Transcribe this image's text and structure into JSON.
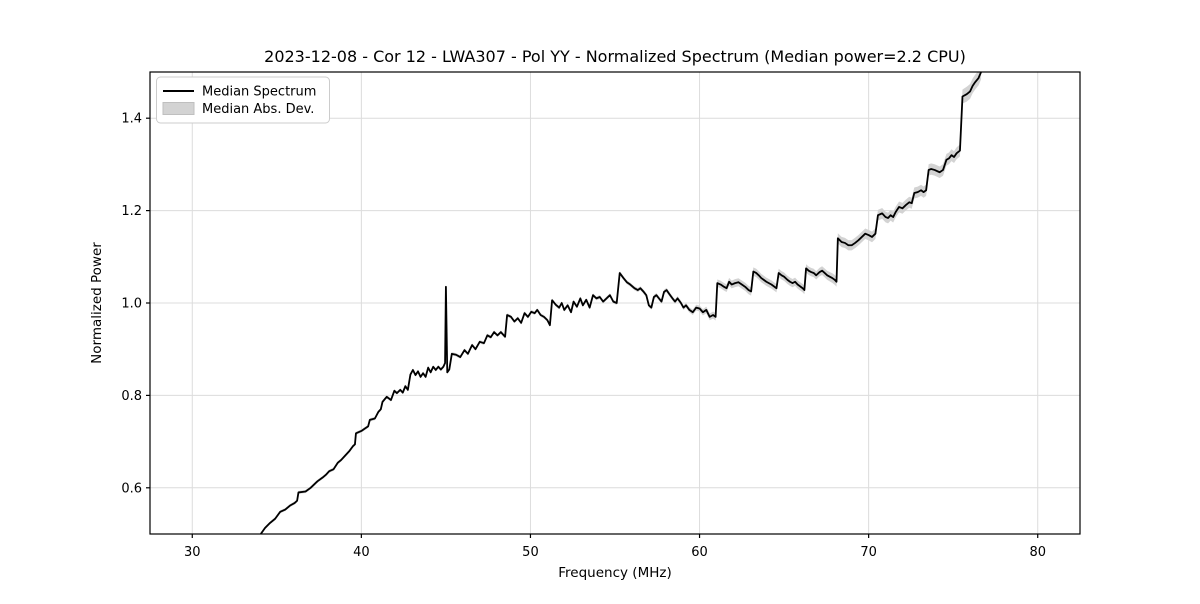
{
  "chart_data": {
    "type": "line",
    "title": "2023-12-08 - Cor 12 - LWA307 - Pol YY - Normalized Spectrum (Median power=2.2 CPU)",
    "xlabel": "Frequency (MHz)",
    "ylabel": "Normalized Power",
    "xlim": [
      27.5,
      82.5
    ],
    "ylim": [
      0.5,
      1.5
    ],
    "xticks": [
      "30",
      "40",
      "50",
      "60",
      "70",
      "80"
    ],
    "yticks": [
      "0.6",
      "0.8",
      "1.0",
      "1.2",
      "1.4"
    ],
    "grid": true,
    "legend": {
      "position": "upper left",
      "entries": [
        {
          "label": "Median Spectrum",
          "swatch": "line"
        },
        {
          "label": "Median Abs. Dev.",
          "swatch": "patch"
        }
      ]
    },
    "colors": {
      "line": "#000000",
      "band": "#d3d3d3",
      "band_edge": "#bfbfbf",
      "grid": "#dcdcdc",
      "frame": "#000000",
      "legend_border": "#cccccc"
    },
    "series": [
      {
        "name": "Median Spectrum",
        "points": [
          [
            34.05,
            0.5
          ],
          [
            34.3,
            0.513
          ],
          [
            34.6,
            0.524
          ],
          [
            34.9,
            0.533
          ],
          [
            35.2,
            0.548
          ],
          [
            35.5,
            0.553
          ],
          [
            35.8,
            0.562
          ],
          [
            36.05,
            0.567
          ],
          [
            36.2,
            0.572
          ],
          [
            36.28,
            0.59
          ],
          [
            36.7,
            0.592
          ],
          [
            37.0,
            0.6
          ],
          [
            37.4,
            0.614
          ],
          [
            37.7,
            0.622
          ],
          [
            37.9,
            0.628
          ],
          [
            38.1,
            0.636
          ],
          [
            38.35,
            0.64
          ],
          [
            38.6,
            0.654
          ],
          [
            38.8,
            0.66
          ],
          [
            39.0,
            0.668
          ],
          [
            39.3,
            0.68
          ],
          [
            39.5,
            0.69
          ],
          [
            39.62,
            0.694
          ],
          [
            39.68,
            0.718
          ],
          [
            40.0,
            0.723
          ],
          [
            40.2,
            0.728
          ],
          [
            40.4,
            0.733
          ],
          [
            40.5,
            0.747
          ],
          [
            40.8,
            0.75
          ],
          [
            41.0,
            0.764
          ],
          [
            41.15,
            0.77
          ],
          [
            41.25,
            0.786
          ],
          [
            41.5,
            0.797
          ],
          [
            41.75,
            0.79
          ],
          [
            41.95,
            0.81
          ],
          [
            42.1,
            0.805
          ],
          [
            42.3,
            0.812
          ],
          [
            42.45,
            0.806
          ],
          [
            42.6,
            0.82
          ],
          [
            42.75,
            0.812
          ],
          [
            42.9,
            0.845
          ],
          [
            43.05,
            0.855
          ],
          [
            43.2,
            0.844
          ],
          [
            43.35,
            0.852
          ],
          [
            43.5,
            0.84
          ],
          [
            43.65,
            0.848
          ],
          [
            43.8,
            0.84
          ],
          [
            43.95,
            0.86
          ],
          [
            44.1,
            0.85
          ],
          [
            44.25,
            0.862
          ],
          [
            44.4,
            0.855
          ],
          [
            44.55,
            0.862
          ],
          [
            44.7,
            0.856
          ],
          [
            44.85,
            0.862
          ],
          [
            44.95,
            0.87
          ],
          [
            45.0,
            1.035
          ],
          [
            45.08,
            0.85
          ],
          [
            45.2,
            0.856
          ],
          [
            45.35,
            0.89
          ],
          [
            45.6,
            0.888
          ],
          [
            45.85,
            0.883
          ],
          [
            46.1,
            0.898
          ],
          [
            46.3,
            0.89
          ],
          [
            46.55,
            0.909
          ],
          [
            46.75,
            0.9
          ],
          [
            47.0,
            0.916
          ],
          [
            47.25,
            0.913
          ],
          [
            47.45,
            0.93
          ],
          [
            47.65,
            0.926
          ],
          [
            47.85,
            0.937
          ],
          [
            48.05,
            0.93
          ],
          [
            48.25,
            0.937
          ],
          [
            48.5,
            0.927
          ],
          [
            48.62,
            0.974
          ],
          [
            48.85,
            0.97
          ],
          [
            49.05,
            0.96
          ],
          [
            49.25,
            0.967
          ],
          [
            49.45,
            0.957
          ],
          [
            49.65,
            0.978
          ],
          [
            49.85,
            0.97
          ],
          [
            50.05,
            0.981
          ],
          [
            50.25,
            0.978
          ],
          [
            50.4,
            0.985
          ],
          [
            50.6,
            0.974
          ],
          [
            50.8,
            0.97
          ],
          [
            51.0,
            0.963
          ],
          [
            51.15,
            0.952
          ],
          [
            51.28,
            1.006
          ],
          [
            51.5,
            0.996
          ],
          [
            51.7,
            0.99
          ],
          [
            51.85,
            1.0
          ],
          [
            52.0,
            0.985
          ],
          [
            52.2,
            0.995
          ],
          [
            52.4,
            0.98
          ],
          [
            52.55,
            1.003
          ],
          [
            52.75,
            0.992
          ],
          [
            52.95,
            1.01
          ],
          [
            53.1,
            0.995
          ],
          [
            53.3,
            1.007
          ],
          [
            53.5,
            0.99
          ],
          [
            53.7,
            1.017
          ],
          [
            53.9,
            1.01
          ],
          [
            54.1,
            1.013
          ],
          [
            54.3,
            1.003
          ],
          [
            54.5,
            1.01
          ],
          [
            54.7,
            1.017
          ],
          [
            54.9,
            1.003
          ],
          [
            55.1,
            1.0
          ],
          [
            55.28,
            1.065
          ],
          [
            55.5,
            1.054
          ],
          [
            55.7,
            1.045
          ],
          [
            55.9,
            1.04
          ],
          [
            56.15,
            1.032
          ],
          [
            56.35,
            1.028
          ],
          [
            56.5,
            1.032
          ],
          [
            56.7,
            1.024
          ],
          [
            56.85,
            1.017
          ],
          [
            57.0,
            0.995
          ],
          [
            57.15,
            0.99
          ],
          [
            57.3,
            1.013
          ],
          [
            57.45,
            1.017
          ],
          [
            57.6,
            1.01
          ],
          [
            57.75,
            1.003
          ],
          [
            57.9,
            1.024
          ],
          [
            58.05,
            1.028
          ],
          [
            58.2,
            1.02
          ],
          [
            58.4,
            1.01
          ],
          [
            58.55,
            1.003
          ],
          [
            58.7,
            1.01
          ],
          [
            58.9,
            1.0
          ],
          [
            59.05,
            0.99
          ],
          [
            59.2,
            0.995
          ],
          [
            59.4,
            0.985
          ],
          [
            59.6,
            0.98
          ],
          [
            59.8,
            0.99
          ],
          [
            60.0,
            0.988
          ],
          [
            60.2,
            0.98
          ],
          [
            60.4,
            0.985
          ],
          [
            60.6,
            0.97
          ],
          [
            60.8,
            0.974
          ],
          [
            60.95,
            0.97
          ],
          [
            61.05,
            1.043
          ],
          [
            61.25,
            1.04
          ],
          [
            61.45,
            1.035
          ],
          [
            61.6,
            1.032
          ],
          [
            61.75,
            1.046
          ],
          [
            61.9,
            1.04
          ],
          [
            62.1,
            1.043
          ],
          [
            62.3,
            1.045
          ],
          [
            62.5,
            1.04
          ],
          [
            62.7,
            1.035
          ],
          [
            62.9,
            1.028
          ],
          [
            63.05,
            1.025
          ],
          [
            63.18,
            1.068
          ],
          [
            63.35,
            1.065
          ],
          [
            63.5,
            1.06
          ],
          [
            63.65,
            1.054
          ],
          [
            63.8,
            1.05
          ],
          [
            63.95,
            1.046
          ],
          [
            64.1,
            1.043
          ],
          [
            64.25,
            1.04
          ],
          [
            64.4,
            1.036
          ],
          [
            64.55,
            1.032
          ],
          [
            64.68,
            1.065
          ],
          [
            64.85,
            1.06
          ],
          [
            65.0,
            1.057
          ],
          [
            65.2,
            1.05
          ],
          [
            65.35,
            1.046
          ],
          [
            65.5,
            1.043
          ],
          [
            65.65,
            1.046
          ],
          [
            65.8,
            1.04
          ],
          [
            65.95,
            1.036
          ],
          [
            66.1,
            1.032
          ],
          [
            66.2,
            1.028
          ],
          [
            66.3,
            1.075
          ],
          [
            66.45,
            1.07
          ],
          [
            66.6,
            1.067
          ],
          [
            66.75,
            1.065
          ],
          [
            66.9,
            1.06
          ],
          [
            67.1,
            1.067
          ],
          [
            67.25,
            1.07
          ],
          [
            67.4,
            1.065
          ],
          [
            67.55,
            1.06
          ],
          [
            67.7,
            1.057
          ],
          [
            67.85,
            1.054
          ],
          [
            68.0,
            1.05
          ],
          [
            68.1,
            1.046
          ],
          [
            68.18,
            1.14
          ],
          [
            68.4,
            1.132
          ],
          [
            68.6,
            1.13
          ],
          [
            68.8,
            1.125
          ],
          [
            69.0,
            1.125
          ],
          [
            69.2,
            1.13
          ],
          [
            69.4,
            1.136
          ],
          [
            69.6,
            1.143
          ],
          [
            69.8,
            1.15
          ],
          [
            70.0,
            1.147
          ],
          [
            70.2,
            1.143
          ],
          [
            70.4,
            1.15
          ],
          [
            70.55,
            1.19
          ],
          [
            70.8,
            1.194
          ],
          [
            71.0,
            1.186
          ],
          [
            71.15,
            1.184
          ],
          [
            71.3,
            1.19
          ],
          [
            71.45,
            1.186
          ],
          [
            71.6,
            1.197
          ],
          [
            71.8,
            1.208
          ],
          [
            72.0,
            1.205
          ],
          [
            72.2,
            1.212
          ],
          [
            72.4,
            1.218
          ],
          [
            72.55,
            1.216
          ],
          [
            72.7,
            1.238
          ],
          [
            72.9,
            1.24
          ],
          [
            73.1,
            1.244
          ],
          [
            73.25,
            1.24
          ],
          [
            73.4,
            1.244
          ],
          [
            73.55,
            1.288
          ],
          [
            73.7,
            1.29
          ],
          [
            73.9,
            1.288
          ],
          [
            74.2,
            1.283
          ],
          [
            74.4,
            1.288
          ],
          [
            74.6,
            1.31
          ],
          [
            74.75,
            1.313
          ],
          [
            74.9,
            1.32
          ],
          [
            75.05,
            1.316
          ],
          [
            75.2,
            1.324
          ],
          [
            75.4,
            1.33
          ],
          [
            75.55,
            1.447
          ],
          [
            75.8,
            1.452
          ],
          [
            76.0,
            1.458
          ],
          [
            76.15,
            1.47
          ],
          [
            76.3,
            1.478
          ],
          [
            76.5,
            1.487
          ],
          [
            76.65,
            1.5
          ]
        ]
      }
    ],
    "band": {
      "name": "Median Abs. Dev.",
      "halfwidth_breakpoints": [
        [
          30,
          0.003
        ],
        [
          55,
          0.004
        ],
        [
          59,
          0.005
        ],
        [
          61,
          0.008
        ],
        [
          63,
          0.009
        ],
        [
          67,
          0.009
        ],
        [
          68.2,
          0.011
        ],
        [
          73,
          0.012
        ],
        [
          75.4,
          0.013
        ],
        [
          75.6,
          0.016
        ],
        [
          77,
          0.016
        ]
      ]
    }
  }
}
